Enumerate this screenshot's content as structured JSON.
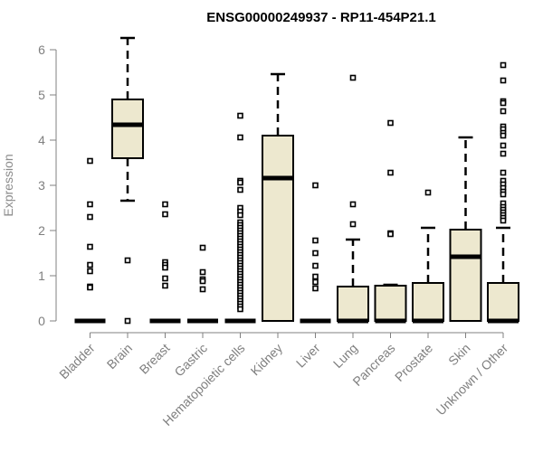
{
  "chart_data": {
    "type": "box",
    "title": "ENSG00000249937 - RP11-454P21.1",
    "xlabel": "",
    "ylabel": "Expression",
    "ylim": [
      0,
      6
    ],
    "yticks": [
      "0",
      "1",
      "2",
      "3",
      "4",
      "5",
      "6"
    ],
    "box_color": "#ede8cf",
    "categories": [
      "Bladder",
      "Brain",
      "Breast",
      "Gastric",
      "Hematopoietic cells",
      "Kidney",
      "Liver",
      "Lung",
      "Pancreas",
      "Prostate",
      "Skin",
      "Unknown / Other"
    ],
    "boxes": [
      {
        "min": 0,
        "q1": 0,
        "median": 0,
        "q3": 0,
        "max": 0,
        "outliers": [
          3.54,
          2.58,
          2.3,
          1.64,
          1.24,
          1.1,
          0.76,
          0.74
        ]
      },
      {
        "min": 2.66,
        "q1": 3.6,
        "median": 4.34,
        "q3": 4.9,
        "max": 6.26,
        "outliers": [
          1.34,
          0
        ]
      },
      {
        "min": 0,
        "q1": 0,
        "median": 0,
        "q3": 0,
        "max": 0,
        "outliers": [
          2.58,
          2.36,
          1.3,
          1.24,
          1.18,
          0.94,
          0.78
        ]
      },
      {
        "min": 0,
        "q1": 0,
        "median": 0,
        "q3": 0,
        "max": 0,
        "outliers": [
          1.62,
          1.08,
          0.92,
          0.88,
          0.7
        ]
      },
      {
        "min": 0,
        "q1": 0,
        "median": 0,
        "q3": 0,
        "max": 0,
        "outliers": [
          4.54,
          4.06,
          3.1,
          3.06,
          2.9,
          2.5,
          2.42,
          2.34,
          2.18,
          2.12,
          2.06,
          2.0,
          1.94,
          1.88,
          1.82,
          1.76,
          1.7,
          1.64,
          1.58,
          1.52,
          1.46,
          1.4,
          1.34,
          1.28,
          1.22,
          1.16,
          1.1,
          1.04,
          0.98,
          0.92,
          0.86,
          0.8,
          0.74,
          0.68,
          0.62,
          0.56,
          0.5,
          0.44,
          0.38,
          0.32,
          0.26
        ]
      },
      {
        "min": 0,
        "q1": 0,
        "median": 3.16,
        "q3": 4.1,
        "max": 5.46,
        "outliers": []
      },
      {
        "min": 0,
        "q1": 0,
        "median": 0,
        "q3": 0,
        "max": 0,
        "outliers": [
          3.0,
          1.78,
          1.5,
          1.22,
          0.98,
          0.86,
          0.72
        ]
      },
      {
        "min": 0,
        "q1": 0,
        "median": 0,
        "q3": 0.76,
        "max": 1.8,
        "outliers": [
          5.38,
          2.58,
          2.14
        ]
      },
      {
        "min": 0,
        "q1": 0,
        "median": 0,
        "q3": 0.78,
        "max": 0.8,
        "outliers": [
          4.38,
          3.28,
          1.94,
          1.92
        ]
      },
      {
        "min": 0,
        "q1": 0,
        "median": 0,
        "q3": 0.84,
        "max": 2.06,
        "outliers": [
          2.84
        ]
      },
      {
        "min": 0,
        "q1": 0,
        "median": 1.42,
        "q3": 2.02,
        "max": 4.06,
        "outliers": []
      },
      {
        "min": 0,
        "q1": 0,
        "median": 0,
        "q3": 0.84,
        "max": 2.06,
        "outliers": [
          5.66,
          5.32,
          4.86,
          4.82,
          4.64,
          4.3,
          4.24,
          4.16,
          4.1,
          3.88,
          3.7,
          3.28,
          3.1,
          3.02,
          2.94,
          2.86,
          2.8,
          2.6,
          2.52,
          2.46,
          2.4,
          2.34,
          2.28,
          2.22
        ]
      }
    ]
  }
}
